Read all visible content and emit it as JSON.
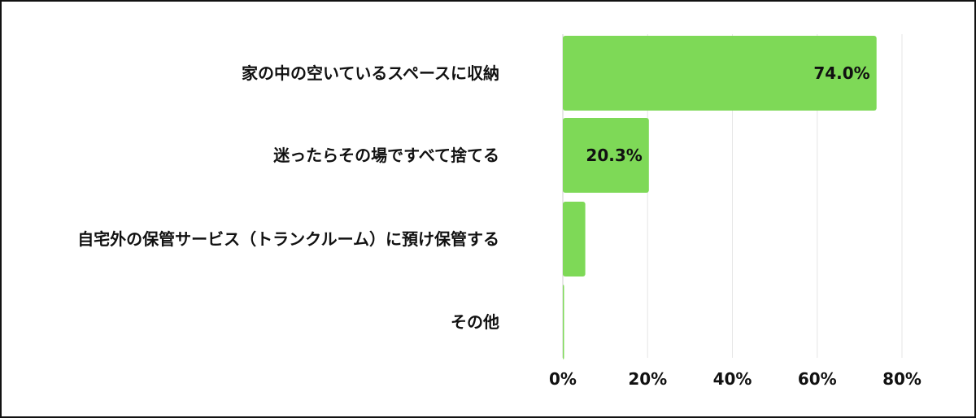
{
  "chart_data": {
    "type": "bar",
    "orientation": "horizontal",
    "categories": [
      "家の中の空いているスペースに収納",
      "迷ったらその場ですべて捨てる",
      "自宅外の保管サービス（トランクルーム）に預け保管する",
      "その他"
    ],
    "values": [
      74.0,
      20.3,
      5.3,
      0.2
    ],
    "data_labels": [
      "74.0%",
      "20.3%",
      "",
      ""
    ],
    "x_ticks": [
      "0%",
      "20%",
      "40%",
      "60%",
      "80%"
    ],
    "xlim": [
      0,
      80
    ],
    "grid": true,
    "bar_color": "#7ed957"
  }
}
